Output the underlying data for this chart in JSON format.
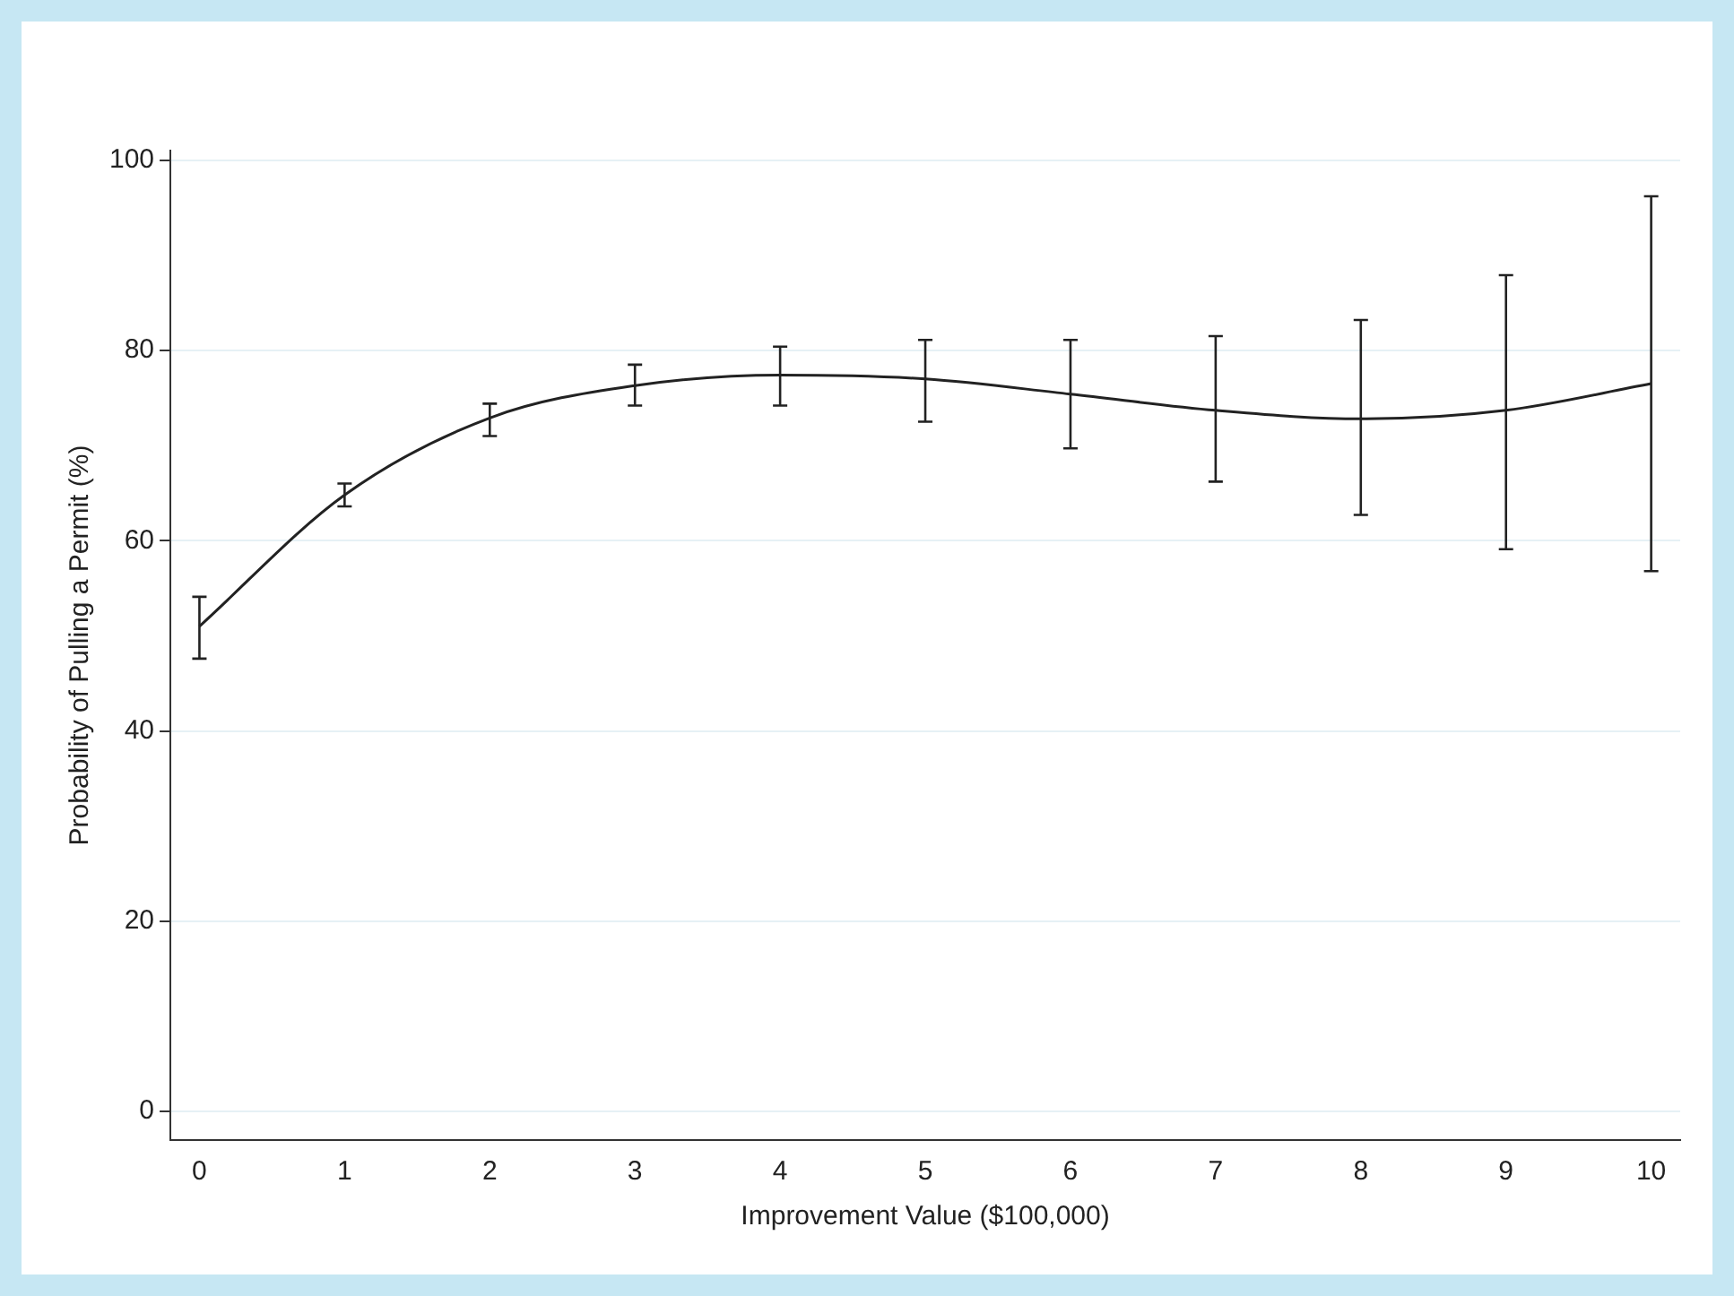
{
  "chart_data": {
    "type": "line",
    "xlabel": "Improvement Value ($100,000)",
    "ylabel": "Probability of Pulling a Permit (%)",
    "x": [
      0,
      1,
      2,
      3,
      4,
      5,
      6,
      7,
      8,
      9,
      10
    ],
    "series": [
      {
        "color": "#222222",
        "values": [
          51.0,
          64.8,
          72.9,
          76.3,
          77.4,
          77.0,
          75.4,
          73.7,
          72.8,
          73.7,
          76.5
        ],
        "errors": [
          [
            47.6,
            54.1
          ],
          [
            63.6,
            66.0
          ],
          [
            71.0,
            74.4
          ],
          [
            74.2,
            78.5
          ],
          [
            74.2,
            80.4
          ],
          [
            72.5,
            81.1
          ],
          [
            69.7,
            81.1
          ],
          [
            66.2,
            81.5
          ],
          [
            62.7,
            83.2
          ],
          [
            59.1,
            87.9
          ],
          [
            56.8,
            96.2
          ]
        ]
      }
    ],
    "xlim": [
      -0.2,
      10.2
    ],
    "xticks": [
      0,
      1,
      2,
      3,
      4,
      5,
      6,
      7,
      8,
      9,
      10
    ],
    "ylim": [
      -3,
      101
    ],
    "yticks": [
      0,
      20,
      40,
      60,
      80,
      100
    ],
    "grid": "y",
    "legend": false,
    "marker": "none",
    "line_style": "solid"
  }
}
